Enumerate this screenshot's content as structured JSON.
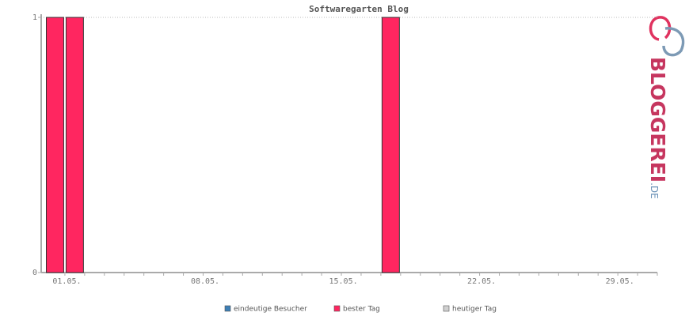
{
  "chart_data": {
    "type": "bar",
    "title": "Softwaregarten Blog",
    "categories": [
      "01.05.",
      null,
      null,
      null,
      null,
      null,
      null,
      "08.05.",
      null,
      null,
      null,
      null,
      null,
      null,
      "15.05.",
      null,
      null,
      null,
      null,
      null,
      null,
      "22.05.",
      null,
      null,
      null,
      null,
      null,
      null,
      "29.05.",
      null,
      null
    ],
    "series": [
      {
        "name": "eindeutige Besucher",
        "color": "#3d7fb5",
        "values": [
          null,
          null,
          0,
          0,
          0,
          0,
          0,
          0,
          0,
          0,
          0,
          0,
          0,
          0,
          0,
          0,
          0,
          null,
          0,
          0,
          0,
          0,
          0,
          0,
          0,
          0,
          0,
          0,
          0,
          0,
          0
        ]
      },
      {
        "name": "bester Tag",
        "color": "#ff2660",
        "values": [
          1,
          1,
          null,
          null,
          null,
          null,
          null,
          null,
          null,
          null,
          null,
          null,
          null,
          null,
          null,
          null,
          null,
          1,
          null,
          null,
          null,
          null,
          null,
          null,
          null,
          null,
          null,
          null,
          null,
          null,
          null
        ]
      },
      {
        "name": "heutiger Tag",
        "color": "#d0d0d0",
        "values": [
          null,
          null,
          null,
          null,
          null,
          null,
          null,
          null,
          null,
          null,
          null,
          null,
          null,
          null,
          null,
          null,
          null,
          null,
          null,
          null,
          null,
          null,
          null,
          null,
          null,
          null,
          null,
          null,
          null,
          null,
          null
        ]
      }
    ],
    "ylim": [
      0,
      1
    ],
    "yticks": [
      0,
      1
    ],
    "grid": true
  },
  "logo": {
    "main": "BLOGGEREI",
    "suffix": ".DE"
  }
}
